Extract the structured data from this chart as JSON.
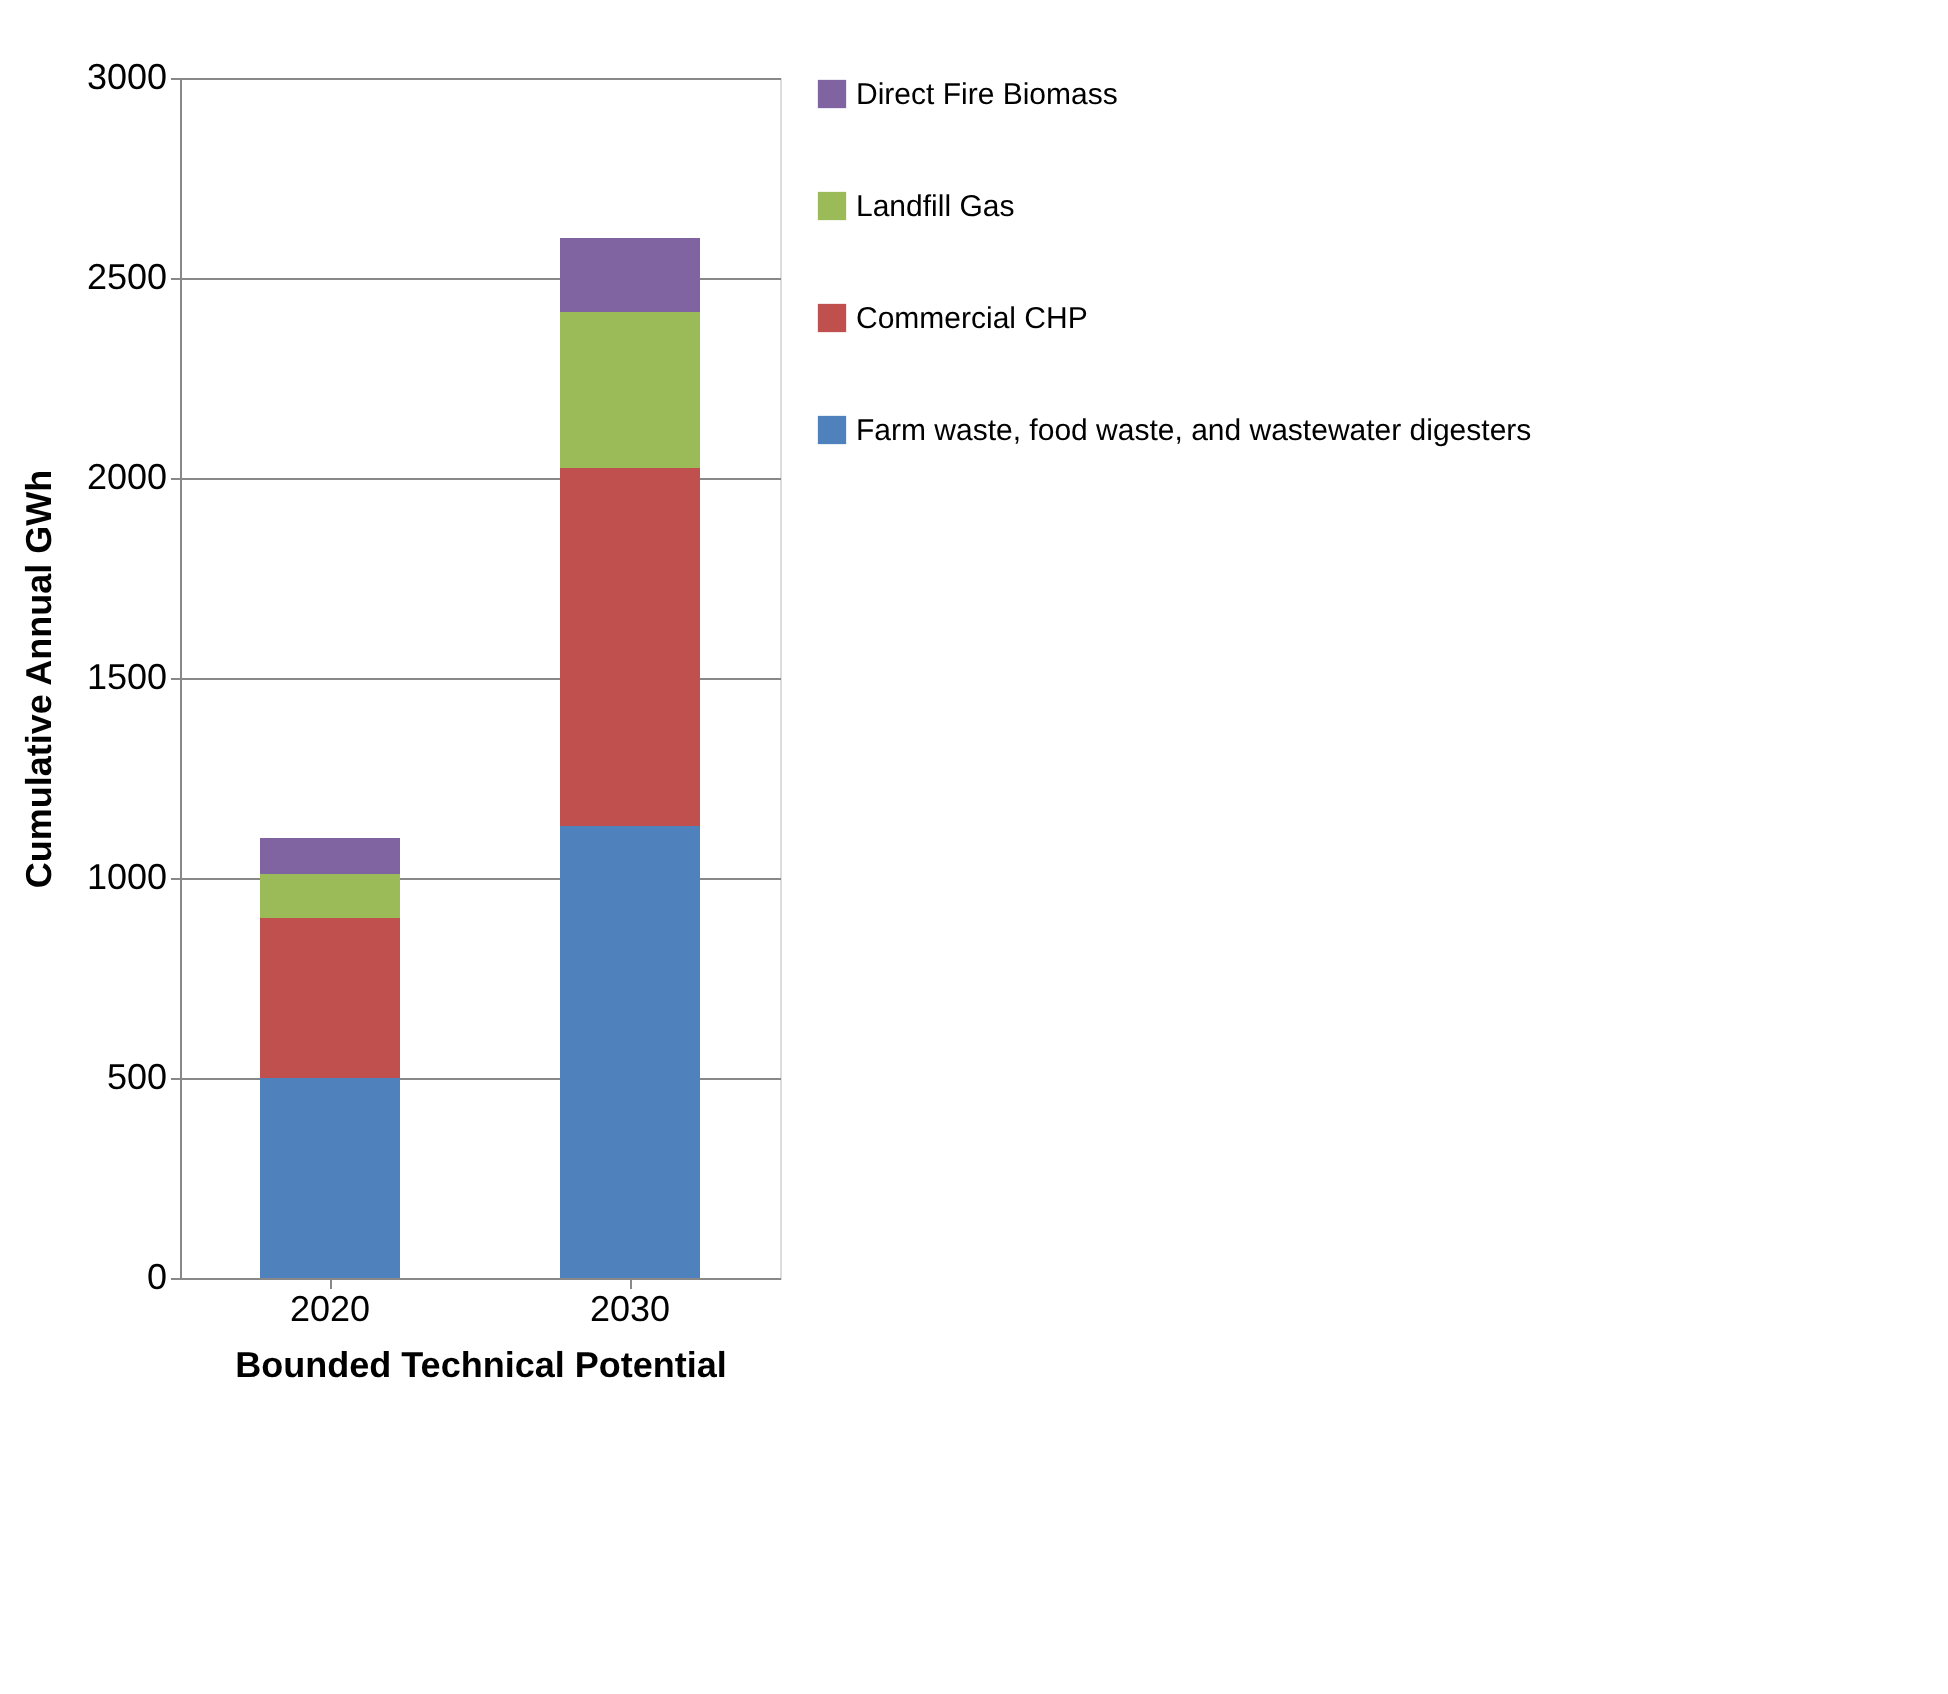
{
  "chart_data": {
    "type": "bar",
    "stacked": true,
    "xlabel": "Bounded Technical Potential",
    "ylabel": "Cumulative Annual GWh",
    "categories": [
      "2020",
      "2030"
    ],
    "series": [
      {
        "name": "Farm waste, food waste, and wastewater digesters",
        "color": "#4f81bd",
        "values": [
          500,
          1130
        ]
      },
      {
        "name": "Commercial CHP",
        "color": "#c0504d",
        "values": [
          400,
          895
        ]
      },
      {
        "name": "Landfill Gas",
        "color": "#9bbb59",
        "values": [
          110,
          390
        ]
      },
      {
        "name": "Direct Fire Biomass",
        "color": "#8064a2",
        "values": [
          90,
          185
        ]
      }
    ],
    "ylim": [
      0,
      3000
    ],
    "yticks": [
      0,
      500,
      1000,
      1500,
      2000,
      2500,
      3000
    ],
    "grid": "y",
    "legend": "right"
  }
}
